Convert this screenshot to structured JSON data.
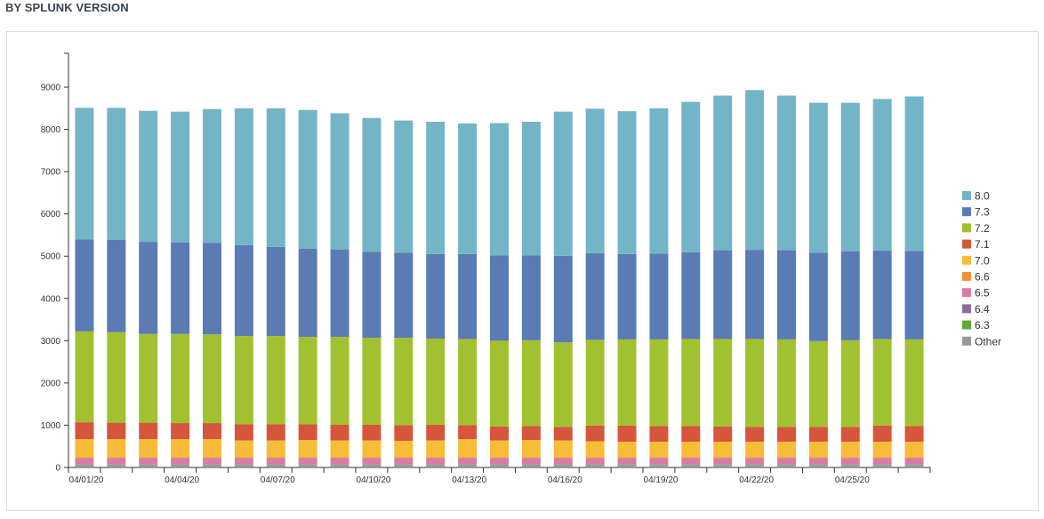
{
  "panel": {
    "title": "BY SPLUNK VERSION"
  },
  "chart_data": {
    "type": "bar",
    "stacked": true,
    "title": "",
    "xlabel": "",
    "ylabel": "",
    "ylim": [
      0,
      9800
    ],
    "y_ticks": [
      0,
      1000,
      2000,
      3000,
      4000,
      5000,
      6000,
      7000,
      8000,
      9000
    ],
    "x_tick_labels": [
      "04/01/20",
      "04/04/20",
      "04/07/20",
      "04/10/20",
      "04/13/20",
      "04/16/20",
      "04/19/20",
      "04/22/20",
      "04/25/20"
    ],
    "categories": [
      "04/01/20",
      "04/02/20",
      "04/03/20",
      "04/04/20",
      "04/05/20",
      "04/06/20",
      "04/07/20",
      "04/08/20",
      "04/09/20",
      "04/10/20",
      "04/11/20",
      "04/12/20",
      "04/13/20",
      "04/14/20",
      "04/15/20",
      "04/16/20",
      "04/17/20",
      "04/18/20",
      "04/19/20",
      "04/20/20",
      "04/21/20",
      "04/22/20",
      "04/23/20",
      "04/24/20",
      "04/25/20",
      "04/26/20",
      "04/27/20"
    ],
    "legend_position": "right",
    "grid": false,
    "series": [
      {
        "name": "Other",
        "color": "#999999",
        "values": [
          60,
          60,
          60,
          60,
          60,
          60,
          60,
          60,
          60,
          60,
          60,
          60,
          60,
          60,
          60,
          60,
          60,
          60,
          60,
          60,
          60,
          60,
          60,
          60,
          60,
          60,
          60
        ]
      },
      {
        "name": "6.3",
        "color": "#65a637",
        "values": [
          10,
          10,
          10,
          10,
          10,
          10,
          10,
          10,
          10,
          10,
          10,
          10,
          10,
          10,
          10,
          10,
          10,
          10,
          10,
          10,
          10,
          10,
          10,
          10,
          10,
          10,
          10
        ]
      },
      {
        "name": "6.4",
        "color": "#8b6a9d",
        "values": [
          10,
          10,
          10,
          10,
          10,
          10,
          10,
          10,
          10,
          10,
          10,
          10,
          10,
          10,
          10,
          10,
          10,
          10,
          10,
          10,
          10,
          10,
          10,
          10,
          10,
          10,
          10
        ]
      },
      {
        "name": "6.5",
        "color": "#d87ba9",
        "values": [
          140,
          140,
          140,
          140,
          140,
          140,
          140,
          140,
          140,
          140,
          140,
          140,
          140,
          140,
          140,
          140,
          140,
          140,
          140,
          140,
          140,
          140,
          140,
          140,
          140,
          140,
          140
        ]
      },
      {
        "name": "6.6",
        "color": "#f58f39",
        "values": [
          20,
          20,
          20,
          20,
          20,
          20,
          20,
          20,
          20,
          20,
          20,
          20,
          20,
          20,
          20,
          20,
          20,
          20,
          20,
          20,
          20,
          20,
          20,
          20,
          20,
          20,
          20
        ]
      },
      {
        "name": "7.0",
        "color": "#f7bc38",
        "values": [
          430,
          430,
          430,
          430,
          430,
          400,
          400,
          410,
          400,
          400,
          390,
          400,
          430,
          400,
          410,
          400,
          380,
          370,
          370,
          370,
          370,
          370,
          370,
          370,
          370,
          370,
          370
        ]
      },
      {
        "name": "7.1",
        "color": "#d6563c",
        "values": [
          400,
          390,
          390,
          380,
          380,
          380,
          380,
          370,
          370,
          370,
          370,
          370,
          330,
          330,
          330,
          320,
          370,
          380,
          370,
          370,
          360,
          350,
          350,
          350,
          350,
          380,
          370
        ]
      },
      {
        "name": "7.2",
        "color": "#a2c131",
        "values": [
          2150,
          2140,
          2100,
          2110,
          2100,
          2090,
          2090,
          2070,
          2080,
          2060,
          2070,
          2040,
          2040,
          2030,
          2030,
          2000,
          2030,
          2040,
          2050,
          2060,
          2070,
          2080,
          2070,
          2030,
          2050,
          2050,
          2050
        ]
      },
      {
        "name": "7.3",
        "color": "#5a7bb4",
        "values": [
          2180,
          2190,
          2180,
          2160,
          2160,
          2150,
          2110,
          2090,
          2070,
          2030,
          2010,
          2000,
          2010,
          2020,
          2010,
          2050,
          2050,
          2020,
          2030,
          2050,
          2100,
          2110,
          2110,
          2090,
          2100,
          2090,
          2090
        ]
      },
      {
        "name": "8.0",
        "color": "#74b4c7",
        "values": [
          3110,
          3120,
          3100,
          3100,
          3170,
          3240,
          3280,
          3280,
          3220,
          3170,
          3130,
          3130,
          3090,
          3130,
          3160,
          3410,
          3420,
          3380,
          3440,
          3560,
          3660,
          3780,
          3660,
          3550,
          3520,
          3590,
          3660
        ]
      }
    ],
    "legend_order": [
      "8.0",
      "7.3",
      "7.2",
      "7.1",
      "7.0",
      "6.6",
      "6.5",
      "6.4",
      "6.3",
      "Other"
    ]
  }
}
